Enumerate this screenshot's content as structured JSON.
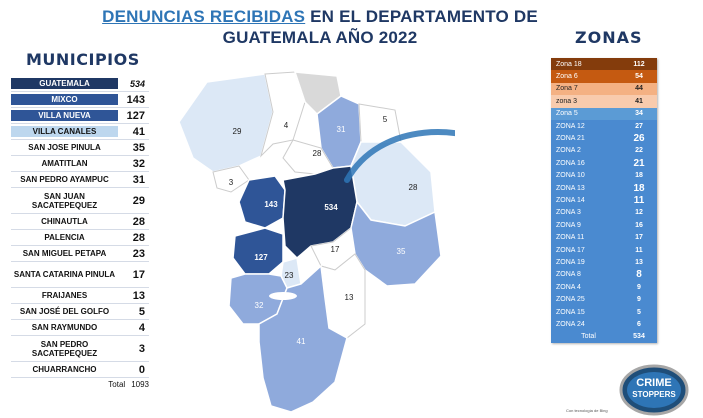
{
  "title": {
    "highlight": "DENUNCIAS RECIBIDAS",
    "line1_rest": " EN EL DEPARTAMENTO DE",
    "line2": "GUATEMALA AÑO 2022"
  },
  "municipios": {
    "header": "MUNICIPIOS",
    "rows": [
      {
        "name": "GUATEMALA",
        "value": "534"
      },
      {
        "name": "MIXCO",
        "value": "143"
      },
      {
        "name": "VILLA NUEVA",
        "value": "127"
      },
      {
        "name": "VILLA CANALES",
        "value": "41"
      },
      {
        "name": "SAN JOSE PINULA",
        "value": "35"
      },
      {
        "name": "AMATITLAN",
        "value": "32"
      },
      {
        "name": "SAN PEDRO AYAMPUC",
        "value": "31"
      },
      {
        "name": "SAN JUAN SACATEPEQUEZ",
        "value": "29"
      },
      {
        "name": "CHINAUTLA",
        "value": "28"
      },
      {
        "name": "PALENCIA",
        "value": "28"
      },
      {
        "name": "SAN MIGUEL PETAPA",
        "value": "23"
      },
      {
        "name": "SANTA CATARINA PINULA",
        "value": "17"
      },
      {
        "name": "FRAIJANES",
        "value": "13"
      },
      {
        "name": "SAN JOSÉ DEL GOLFO",
        "value": "5"
      },
      {
        "name": "SAN RAYMUNDO",
        "value": "4"
      },
      {
        "name": "SAN PEDRO SACATEPEQUEZ",
        "value": "3"
      },
      {
        "name": "CHUARRANCHO",
        "value": "0"
      }
    ],
    "total_label": "Total",
    "total_value": "1093"
  },
  "zonas": {
    "header": "ZONAS",
    "rows": [
      {
        "name": "Zona 18",
        "value": "112",
        "color": "#843c0c"
      },
      {
        "name": "Zona 6",
        "value": "54",
        "color": "#c55a11"
      },
      {
        "name": "Zona 7",
        "value": "44",
        "color": "#f4b183"
      },
      {
        "name": "zona 3",
        "value": "41",
        "color": "#f8cbad"
      },
      {
        "name": "Zona 5",
        "value": "34",
        "color": "#5b9bd5"
      },
      {
        "name": "ZONA 12",
        "value": "27",
        "color": "#4a8ad0"
      },
      {
        "name": "ZONA 21",
        "value": "26",
        "color": "#4a8ad0",
        "big": true
      },
      {
        "name": "ZONA 2",
        "value": "22",
        "color": "#4a8ad0"
      },
      {
        "name": "ZONA 16",
        "value": "21",
        "color": "#4a8ad0",
        "big": true
      },
      {
        "name": "ZONA 10",
        "value": "18",
        "color": "#4a8ad0"
      },
      {
        "name": "ZONA 13",
        "value": "18",
        "color": "#4a8ad0",
        "big": true
      },
      {
        "name": "ZONA 14",
        "value": "11",
        "color": "#4a8ad0",
        "big": true
      },
      {
        "name": "ZONA 3",
        "value": "12",
        "color": "#4a8ad0"
      },
      {
        "name": "ZONA 9",
        "value": "16",
        "color": "#4a8ad0"
      },
      {
        "name": "ZONA 11",
        "value": "17",
        "color": "#4a8ad0"
      },
      {
        "name": "ZONA 17",
        "value": "11",
        "color": "#4a8ad0"
      },
      {
        "name": "ZONA 19",
        "value": "13",
        "color": "#4a8ad0"
      },
      {
        "name": "ZONA 8",
        "value": "8",
        "color": "#4a8ad0",
        "big": true
      },
      {
        "name": "ZONA 4",
        "value": "9",
        "color": "#4a8ad0"
      },
      {
        "name": "ZONA 25",
        "value": "9",
        "color": "#4a8ad0"
      },
      {
        "name": "ZONA 15",
        "value": "5",
        "color": "#4a8ad0"
      },
      {
        "name": "ZONA 24",
        "value": "6",
        "color": "#4a8ad0"
      },
      {
        "name": "Total",
        "value": "534",
        "color": "#4a8ad0"
      }
    ]
  },
  "map_labels": [
    "29",
    "4",
    "31",
    "5",
    "28",
    "28",
    "3",
    "143",
    "534",
    "17",
    "35",
    "127",
    "23",
    "13",
    "32",
    "41"
  ],
  "badge": {
    "line1": "CRIME",
    "line2": "STOPPERS"
  },
  "credit": "Con tecnología de Bing"
}
